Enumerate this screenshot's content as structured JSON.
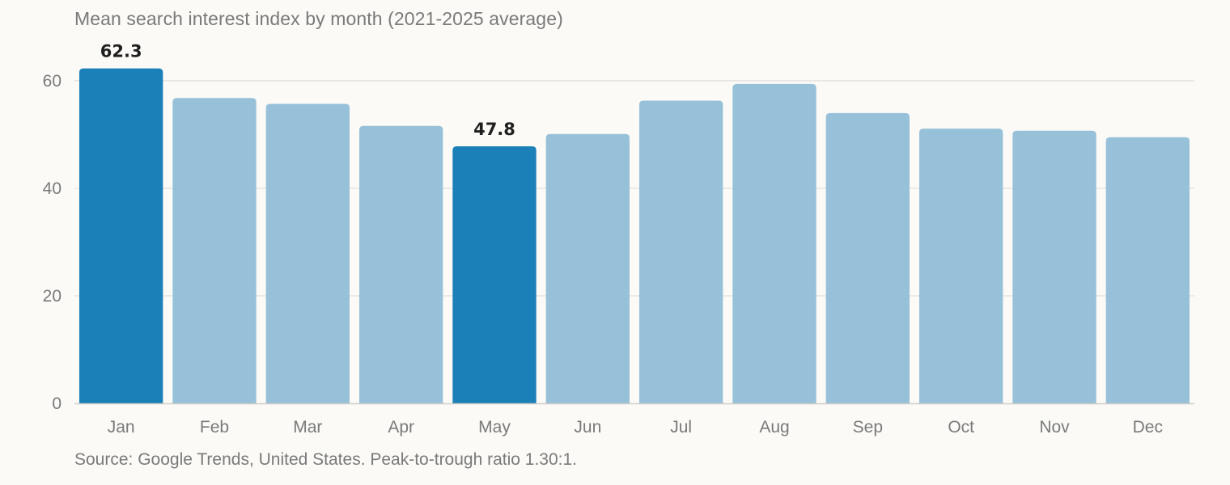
{
  "chart_data": {
    "type": "bar",
    "title": "Mean search interest index by month (2021-2025 average)",
    "source": "Source: Google Trends, United States. Peak-to-trough ratio 1.30:1.",
    "categories": [
      "Jan",
      "Feb",
      "Mar",
      "Apr",
      "May",
      "Jun",
      "Jul",
      "Aug",
      "Sep",
      "Oct",
      "Nov",
      "Dec"
    ],
    "values": [
      62.3,
      56.8,
      55.7,
      51.6,
      47.8,
      50.1,
      56.3,
      59.4,
      54.0,
      51.1,
      50.7,
      49.5
    ],
    "highlighted": [
      "Jan",
      "May"
    ],
    "data_labels": [
      {
        "category": "Jan",
        "text": "62.3"
      },
      {
        "category": "May",
        "text": "47.8"
      }
    ],
    "yticks": [
      0,
      20,
      40,
      60
    ],
    "ylim": [
      0,
      66
    ],
    "grid": true,
    "legend": "none",
    "colors": {
      "bar": "#97c1d9",
      "highlight": "#1b80b7",
      "grid": "#e6e4df",
      "axis": "#cfcdc8"
    }
  }
}
